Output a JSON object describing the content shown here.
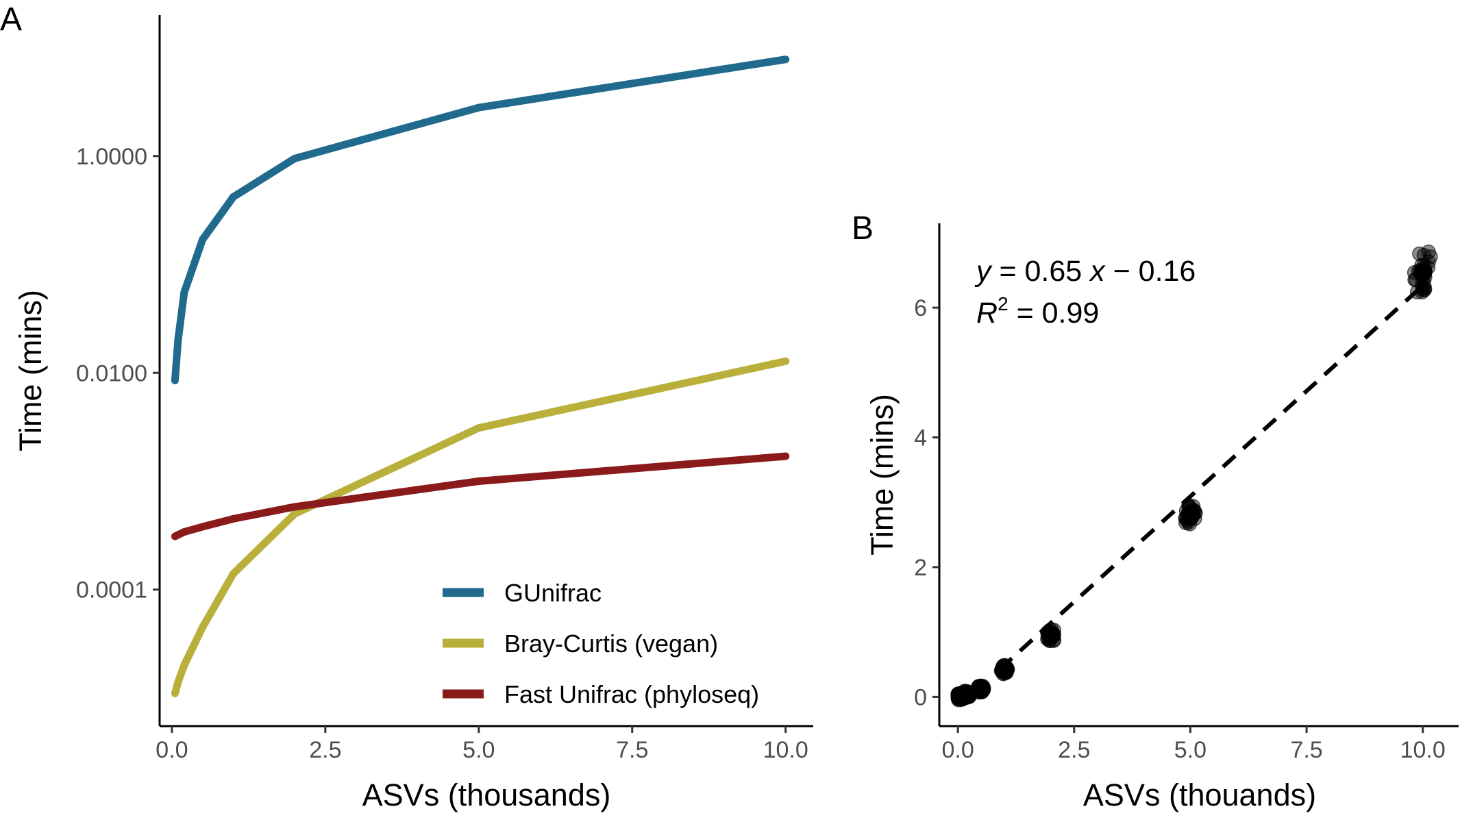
{
  "chart_data": [
    {
      "panel": "A",
      "type": "line",
      "xlabel": "ASVs (thousands)",
      "ylabel": "Time (mins)",
      "y_scale": "log10",
      "xlim": [
        -0.2,
        10.45
      ],
      "ylim": [
        5.5e-06,
        20
      ],
      "x_ticks": [
        0,
        2.5,
        5,
        7.5,
        10
      ],
      "x_tick_labels": [
        "0.0",
        "2.5",
        "5.0",
        "7.5",
        "10.0"
      ],
      "y_ticks": [
        0.0001,
        0.01,
        1
      ],
      "y_tick_labels": [
        "0.0001",
        "0.0100",
        "1.0000"
      ],
      "legend_position": "bottom-right",
      "x": [
        0.05,
        0.1,
        0.2,
        0.5,
        1,
        2,
        5,
        10
      ],
      "series": [
        {
          "name": "GUnifrac",
          "color": "#1f6a8d",
          "values": [
            0.0085,
            0.02,
            0.055,
            0.17,
            0.42,
            0.95,
            2.8,
            7.8
          ]
        },
        {
          "name": "Bray-Curtis (vegan)",
          "color": "#b8b03a",
          "values": [
            1.1e-05,
            1.4e-05,
            2e-05,
            4.5e-05,
            0.00014,
            0.0005,
            0.0031,
            0.0128
          ]
        },
        {
          "name": "Fast Unifrac (phyloseq)",
          "color": "#8b1a1a",
          "values": [
            0.00031,
            0.00032,
            0.00034,
            0.00038,
            0.00045,
            0.00058,
            0.001,
            0.0017
          ]
        }
      ]
    },
    {
      "panel": "B",
      "type": "scatter",
      "xlabel": "ASVs (thouands)",
      "ylabel": "Time (mins)",
      "xlim": [
        -0.4,
        10.8
      ],
      "ylim": [
        -0.45,
        7.3
      ],
      "x_ticks": [
        0,
        2.5,
        5,
        7.5,
        10
      ],
      "x_tick_labels": [
        "0.0",
        "2.5",
        "5.0",
        "7.5",
        "10.0"
      ],
      "y_ticks": [
        0,
        2,
        4,
        6
      ],
      "y_tick_labels": [
        "0",
        "2",
        "4",
        "6"
      ],
      "equation": {
        "y_var": "y",
        "eq_text": " = 0.65 ",
        "x_var": "x",
        "rest": " − 0.16",
        "r_var": "R",
        "r_sup": "2",
        "r_rest": " = 0.99"
      },
      "fit": {
        "slope": 0.65,
        "intercept": -0.16,
        "x_from": 0.9,
        "x_to": 10
      },
      "clusters": [
        {
          "x": 0.05,
          "y": 0.0
        },
        {
          "x": 0.1,
          "y": 0.02
        },
        {
          "x": 0.2,
          "y": 0.04
        },
        {
          "x": 0.5,
          "y": 0.12
        },
        {
          "x": 1,
          "y": 0.42
        },
        {
          "x": 2,
          "y": 0.95
        },
        {
          "x": 5,
          "y": 2.8
        },
        {
          "x": 10,
          "y": 6.55
        }
      ],
      "point_color": "#000000"
    }
  ]
}
